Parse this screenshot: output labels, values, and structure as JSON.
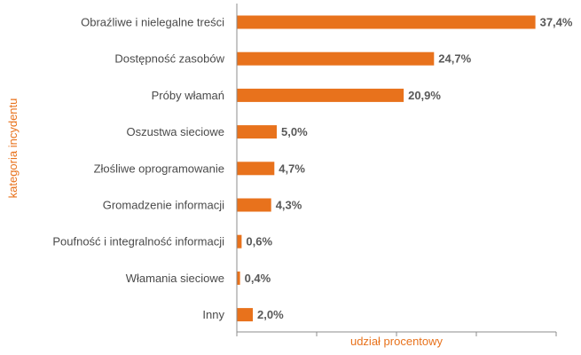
{
  "colors": {
    "bar": "#e8721c",
    "axis": "#8c8c8c",
    "axis_title": "#e8721c"
  },
  "chart_data": {
    "type": "bar",
    "orientation": "horizontal",
    "title": "",
    "xlabel": "udział procentowy",
    "ylabel": "kategoria incydentu",
    "xlim": [
      0,
      40
    ],
    "grid": false,
    "categories": [
      "Obraźliwe i nielegalne treści",
      "Dostępność zasobów",
      "Próby włamań",
      "Oszustwa sieciowe",
      "Złośliwe oprogramowanie",
      "Gromadzenie informacji",
      "Poufność i integralność informacji",
      "Włamania sieciowe",
      "Inny"
    ],
    "values": [
      37.4,
      24.7,
      20.9,
      5.0,
      4.7,
      4.3,
      0.6,
      0.4,
      2.0
    ],
    "value_labels": [
      "37,4%",
      "24,7%",
      "20,9%",
      "5,0%",
      "4,7%",
      "4,3%",
      "0,6%",
      "0,4%",
      "2,0%"
    ]
  }
}
